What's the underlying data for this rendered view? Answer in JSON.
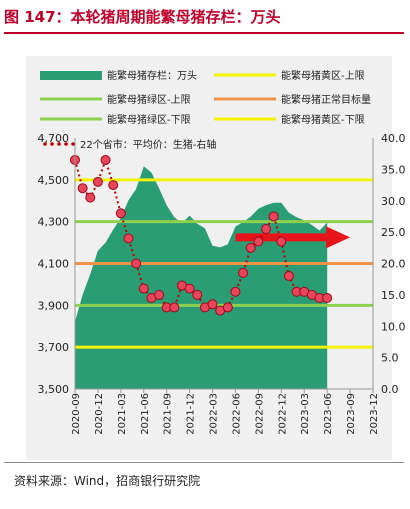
{
  "title": "图 147：本轮猪周期能繁母猪存栏：万头",
  "source": "资料来源：Wind，招商银行研究院",
  "chart_data": {
    "type": "area",
    "legend_placement": "top",
    "grid": false,
    "x_ticks": [
      "2020-09",
      "2020-12",
      "2021-03",
      "2021-06",
      "2021-09",
      "2021-12",
      "2022-03",
      "2022-06",
      "2022-09",
      "2022-12",
      "2023-03",
      "2023-06",
      "2023-09",
      "2023-12"
    ],
    "y_left": {
      "ticks": [
        "3,500",
        "3,700",
        "3,900",
        "4,100",
        "4,300",
        "4,500",
        "4,700"
      ],
      "range": [
        3500,
        4700
      ]
    },
    "y_right": {
      "ticks": [
        "0.0",
        "5.0",
        "10.0",
        "15.0",
        "20.0",
        "25.0",
        "30.0",
        "35.0",
        "40.0"
      ],
      "range": [
        0,
        40
      ]
    },
    "area_series": {
      "name": "能繁母猪存栏：万头",
      "color": "#2a9d74",
      "x": [
        "2020-09",
        "2020-10",
        "2020-11",
        "2020-12",
        "2021-01",
        "2021-02",
        "2021-03",
        "2021-04",
        "2021-05",
        "2021-06",
        "2021-07",
        "2021-08",
        "2021-09",
        "2021-10",
        "2021-11",
        "2021-12",
        "2022-01",
        "2022-02",
        "2022-03",
        "2022-04",
        "2022-05",
        "2022-06",
        "2022-07",
        "2022-08",
        "2022-09",
        "2022-10",
        "2022-11",
        "2022-12",
        "2023-01",
        "2023-02",
        "2023-03",
        "2023-04",
        "2023-05",
        "2023-06"
      ],
      "values": [
        3822,
        3950,
        4050,
        4161,
        4200,
        4262,
        4318,
        4402,
        4456,
        4564,
        4535,
        4459,
        4378,
        4321,
        4293,
        4329,
        4290,
        4268,
        4185,
        4177,
        4192,
        4277,
        4298,
        4324,
        4362,
        4379,
        4390,
        4390,
        4343,
        4321,
        4306,
        4284,
        4258,
        4296
      ]
    },
    "dot_series": {
      "name": "22个省市：平均价：生猪-右轴",
      "axis": "right",
      "color": "#c00000",
      "x": [
        "2020-09",
        "2020-10",
        "2020-11",
        "2020-12",
        "2021-01",
        "2021-02",
        "2021-03",
        "2021-04",
        "2021-05",
        "2021-06",
        "2021-07",
        "2021-08",
        "2021-09",
        "2021-10",
        "2021-11",
        "2021-12",
        "2022-01",
        "2022-02",
        "2022-03",
        "2022-04",
        "2022-05",
        "2022-06",
        "2022-07",
        "2022-08",
        "2022-09",
        "2022-10",
        "2022-11",
        "2022-12",
        "2023-01",
        "2023-02",
        "2023-03",
        "2023-04",
        "2023-05",
        "2023-06"
      ],
      "values": [
        36.5,
        32,
        30.5,
        33,
        36.5,
        32.5,
        28,
        24,
        20,
        16,
        14.5,
        15,
        13,
        13,
        16.5,
        16,
        15,
        13,
        13.5,
        12.5,
        13,
        15.5,
        18.5,
        22.5,
        23.5,
        25.5,
        27.5,
        23.5,
        18,
        15.5,
        15.5,
        15,
        14.5,
        14.5
      ]
    },
    "reference_lines": [
      {
        "name": "能繁母猪黄区-上限",
        "value": 4500,
        "color": "#f3f300"
      },
      {
        "name": "能繁母猪绿区-上限",
        "value": 4300,
        "color": "#8fd14f"
      },
      {
        "name": "能繁母猪正常目标量",
        "value": 4100,
        "color": "#f0924a"
      },
      {
        "name": "能繁母猪绿区-下限",
        "value": 3900,
        "color": "#8fd14f"
      },
      {
        "name": "能繁母猪黄区-下限",
        "value": 3700,
        "color": "#f3f300"
      }
    ],
    "annotation": {
      "kind": "arrow",
      "direction": "right",
      "color": "#e8141c",
      "from": "2022-06",
      "to": "2023-09",
      "value": 4225
    }
  }
}
